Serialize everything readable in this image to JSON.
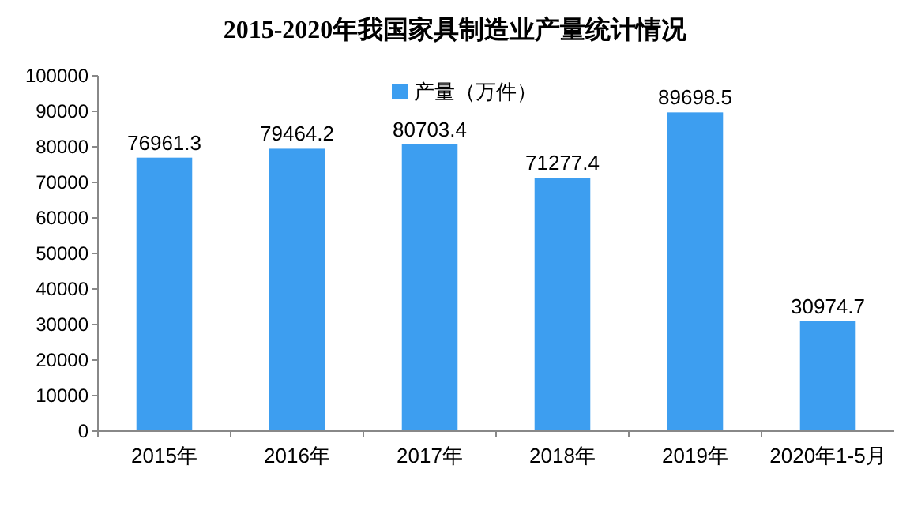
{
  "chart_data": {
    "type": "bar",
    "title": "2015-2020年我国家具制造业产量统计情况",
    "categories": [
      "2015年",
      "2016年",
      "2017年",
      "2018年",
      "2019年",
      "2020年1-5月"
    ],
    "series": [
      {
        "name": "产量（万件）",
        "color": "#3d9ef0",
        "values": [
          76961.3,
          79464.2,
          80703.4,
          71277.4,
          89698.5,
          30974.7
        ]
      }
    ],
    "ylim": [
      0,
      100000
    ],
    "yticks": [
      0,
      10000,
      20000,
      30000,
      40000,
      50000,
      60000,
      70000,
      80000,
      90000,
      100000
    ],
    "grid": false,
    "legend": "top",
    "data_labels": true
  }
}
